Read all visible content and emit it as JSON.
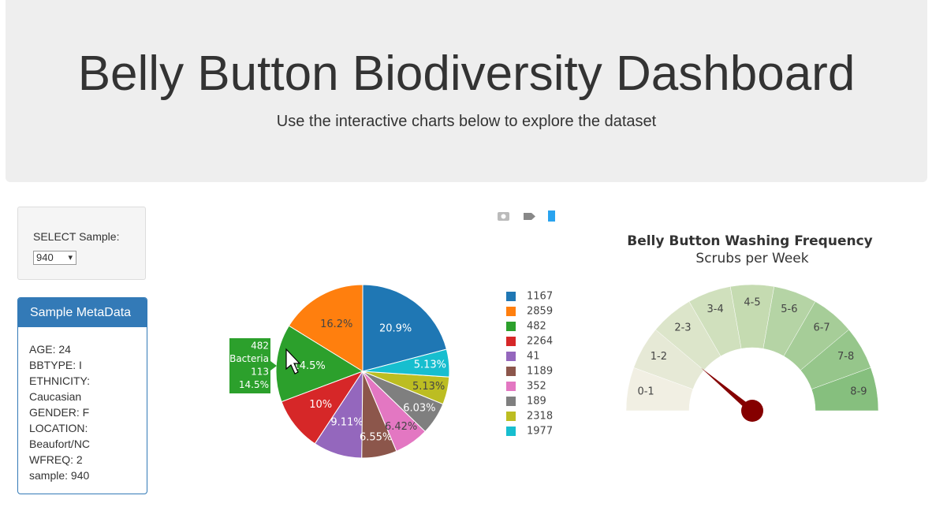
{
  "header": {
    "title": "Belly Button Biodiversity Dashboard",
    "subtitle": "Use the interactive charts below to explore the dataset"
  },
  "selector": {
    "label": "SELECT Sample:",
    "selected": "940"
  },
  "metadata": {
    "title": "Sample MetaData",
    "lines": [
      "AGE: 24",
      "BBTYPE: I",
      "ETHNICITY: Caucasian",
      "GENDER: F",
      "LOCATION: Beaufort/NC",
      "WFREQ: 2",
      "sample: 940"
    ]
  },
  "chart_data": [
    {
      "type": "pie",
      "categories": [
        "1167",
        "2859",
        "482",
        "2264",
        "41",
        "1189",
        "352",
        "189",
        "2318",
        "1977"
      ],
      "values": [
        20.9,
        16.2,
        14.5,
        10,
        9.11,
        6.55,
        6.42,
        6.03,
        5.13,
        5.13
      ],
      "value_labels": [
        "20.9%",
        "16.2%",
        "14.5%",
        "10%",
        "9.11%",
        "6.55%",
        "6.42%",
        "6.03%",
        "5.13%",
        "5.13%"
      ],
      "colors": [
        "#1f77b4",
        "#ff7f0e",
        "#2ca02c",
        "#d62728",
        "#9467bd",
        "#8c564b",
        "#e377c2",
        "#7f7f7f",
        "#bcbd22",
        "#17becf"
      ],
      "tooltip": {
        "label": "482",
        "name": "Bacteria",
        "count": 113,
        "percent": "14.5%"
      }
    },
    {
      "type": "gauge",
      "title": "Belly Button Washing Frequency",
      "subtitle": "Scrubs per Week",
      "categories": [
        "0-1",
        "1-2",
        "2-3",
        "3-4",
        "4-5",
        "5-6",
        "6-7",
        "7-8",
        "8-9"
      ],
      "colors": [
        "#f1efe3",
        "#e6e9d6",
        "#dce5ca",
        "#d0e0bd",
        "#c5dbb1",
        "#b5d4a5",
        "#a6cd98",
        "#96c68b",
        "#86bf7e"
      ],
      "value": 2,
      "needle_color": "#850000"
    }
  ]
}
